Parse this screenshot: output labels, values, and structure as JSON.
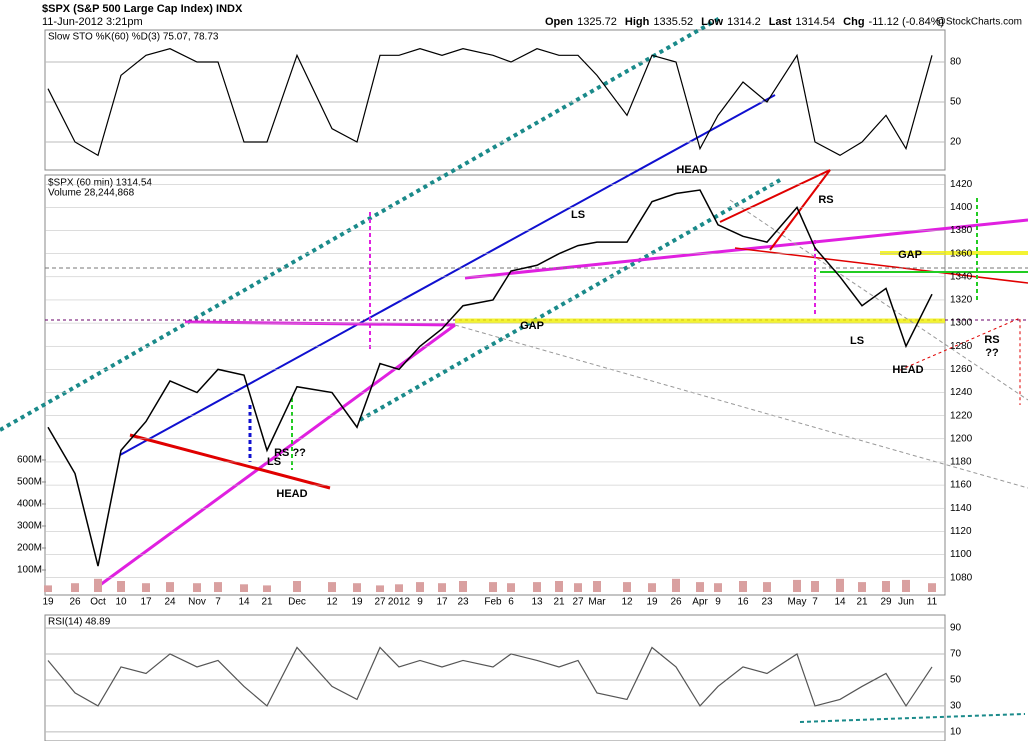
{
  "header": {
    "title": "$SPX (S&P 500 Large Cap Index) INDX",
    "timestamp": "11-Jun-2012 3:21pm",
    "quote": [
      {
        "label": "Open",
        "value": 1325.72
      },
      {
        "label": "High",
        "value": 1335.52
      },
      {
        "label": "Low",
        "value": 1314.2
      },
      {
        "label": "Last",
        "value": 1314.54
      },
      {
        "label": "Chg",
        "value": "-11.12 (-0.84%)"
      }
    ],
    "credit": "@StockCharts.com"
  },
  "annotations": [
    {
      "text": "HEAD",
      "color": "#e020e0"
    },
    {
      "text": "LS",
      "color": "#e020e0"
    },
    {
      "text": "RS",
      "color": "#e020e0"
    },
    {
      "text": "GAP",
      "color": "#e00000"
    },
    {
      "text": "GAP",
      "color": "#e00000"
    },
    {
      "text": "LS",
      "color": "#22cc22"
    },
    {
      "text": "HEAD",
      "color": "#22cc22"
    },
    {
      "text": "RS",
      "color": "#22cc22"
    },
    {
      "text": "??",
      "color": "#22cc22"
    },
    {
      "text": "RS ??",
      "color": "#22cc22"
    },
    {
      "text": "LS",
      "color": "#22cc22"
    },
    {
      "text": "HEAD",
      "color": "#22cc22"
    }
  ],
  "chart_data": [
    {
      "type": "line",
      "title": "Slow STO %K(60) %D(3) 75.07, 78.73",
      "ylim": [
        -1,
        104
      ],
      "yticks": [
        20,
        50,
        80
      ],
      "grid": true,
      "series": [
        {
          "name": "Slow STO",
          "color": "#000000",
          "values": [
            60,
            20,
            10,
            70,
            85,
            90,
            80,
            80,
            20,
            20,
            85,
            30,
            20,
            85,
            85,
            90,
            85,
            90,
            85,
            80,
            90,
            85,
            85,
            70,
            40,
            85,
            80,
            15,
            40,
            65,
            50,
            85,
            20,
            10,
            20,
            40,
            15,
            85
          ]
        }
      ]
    },
    {
      "type": "line",
      "title": "$SPX (60 min) 1314.54",
      "subtitle": "Volume 28,244,868",
      "categories": [
        "19",
        "26",
        "Oct",
        "10",
        "17",
        "24",
        "Nov",
        "7",
        "14",
        "21",
        "Dec",
        "12",
        "19",
        "27",
        "2012",
        "9",
        "17",
        "23",
        "Feb",
        "6",
        "13",
        "21",
        "27",
        "Mar",
        "12",
        "19",
        "26",
        "Apr",
        "9",
        "16",
        "23",
        "May",
        "7",
        "14",
        "21",
        "29",
        "Jun",
        "11"
      ],
      "ylim": [
        1065,
        1428
      ],
      "yticks": [
        1080,
        1100,
        1120,
        1140,
        1160,
        1180,
        1200,
        1220,
        1240,
        1260,
        1280,
        1300,
        1320,
        1340,
        1360,
        1380,
        1400,
        1420
      ],
      "grid": true,
      "y2lim": [
        -13600000,
        1895000000
      ],
      "y2ticks": [
        {
          "value": 100000000,
          "label": "100M"
        },
        {
          "value": 200000000,
          "label": "200M"
        },
        {
          "value": 300000000,
          "label": "300M"
        },
        {
          "value": 400000000,
          "label": "400M"
        },
        {
          "value": 500000000,
          "label": "500M"
        },
        {
          "value": 600000000,
          "label": "600M"
        }
      ],
      "series": [
        {
          "name": "$SPX",
          "color": "#000000",
          "values": [
            1210,
            1170,
            1090,
            1190,
            1215,
            1250,
            1240,
            1260,
            1255,
            1190,
            1245,
            1240,
            1210,
            1265,
            1260,
            1280,
            1295,
            1315,
            1320,
            1345,
            1350,
            1360,
            1367,
            1370,
            1370,
            1405,
            1412,
            1415,
            1385,
            1375,
            1370,
            1400,
            1365,
            1340,
            1315,
            1330,
            1280,
            1325
          ]
        },
        {
          "name": "Volume",
          "color": "#d9a0a0",
          "axis": "y2",
          "values": [
            30000000,
            40000000,
            60000000,
            50000000,
            40000000,
            45000000,
            40000000,
            45000000,
            35000000,
            30000000,
            50000000,
            45000000,
            40000000,
            30000000,
            35000000,
            45000000,
            40000000,
            50000000,
            45000000,
            40000000,
            45000000,
            50000000,
            40000000,
            50000000,
            45000000,
            40000000,
            60000000,
            45000000,
            40000000,
            50000000,
            45000000,
            55000000,
            50000000,
            60000000,
            45000000,
            50000000,
            55000000,
            40000000
          ]
        }
      ]
    },
    {
      "type": "line",
      "title": "RSI(14) 48.89",
      "ylim": [
        3,
        100
      ],
      "yticks": [
        10,
        30,
        50,
        70,
        90
      ],
      "grid": true,
      "series": [
        {
          "name": "RSI(14)",
          "color": "#555555",
          "values": [
            65,
            40,
            30,
            60,
            55,
            70,
            60,
            65,
            45,
            30,
            75,
            45,
            35,
            75,
            60,
            65,
            60,
            65,
            60,
            70,
            65,
            60,
            65,
            40,
            35,
            75,
            60,
            30,
            45,
            60,
            55,
            70,
            30,
            35,
            45,
            55,
            30,
            60
          ]
        }
      ]
    }
  ]
}
